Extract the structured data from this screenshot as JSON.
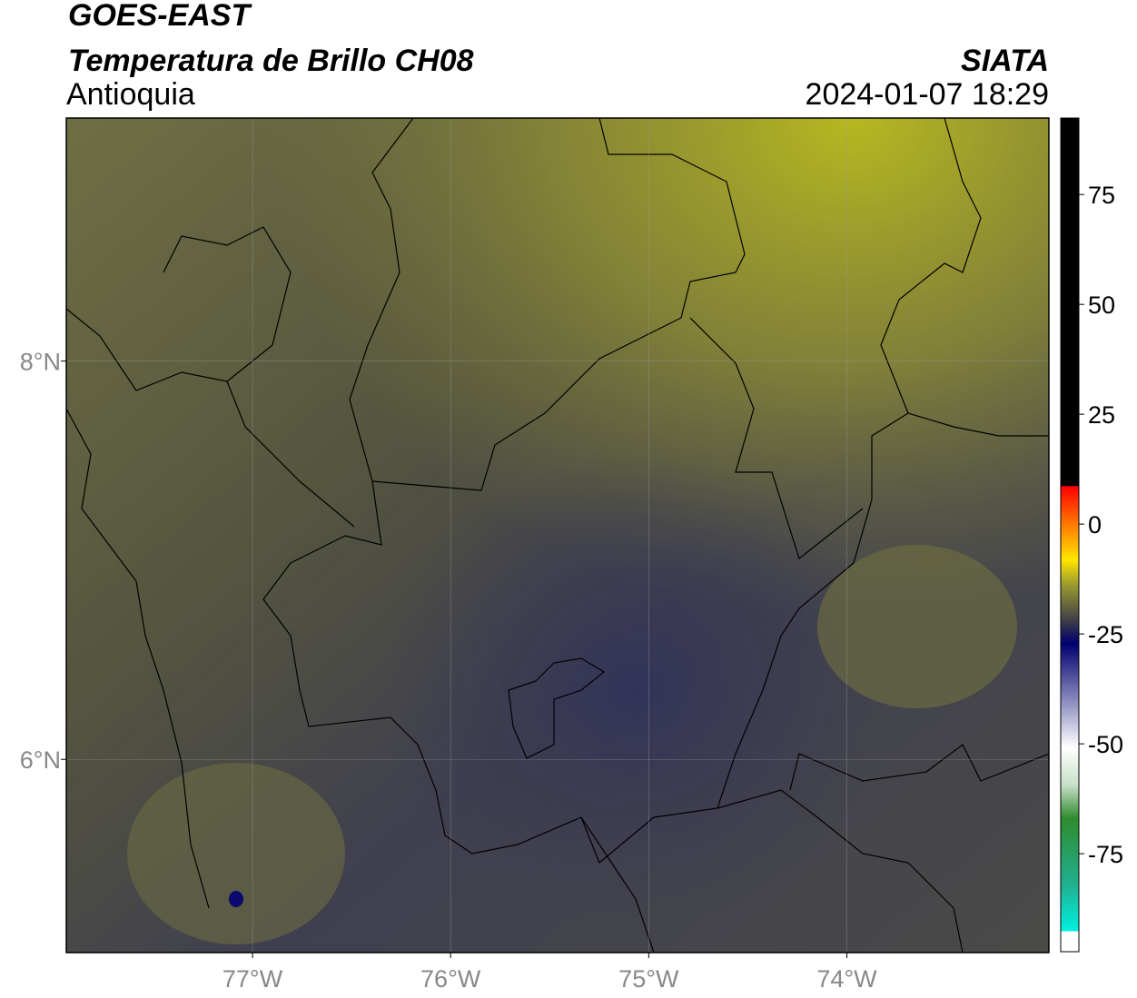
{
  "header": {
    "title": "GOES-EAST",
    "subtitle": "Temperatura de Brillo CH08",
    "region": "Antioquia",
    "source": "SIATA",
    "datetime": "2024-01-07 18:29"
  },
  "map": {
    "xlim": [
      -77.94,
      -72.98
    ],
    "ylim": [
      5.03,
      9.22
    ],
    "xticks": [
      {
        "value": -77,
        "label": "77°W"
      },
      {
        "value": -76,
        "label": "76°W"
      },
      {
        "value": -75,
        "label": "75°W"
      },
      {
        "value": -74,
        "label": "74°W"
      }
    ],
    "yticks": [
      {
        "value": 8,
        "label": "8°N"
      },
      {
        "value": 6,
        "label": "6°N"
      }
    ]
  },
  "colorbar": {
    "lim": [
      -97.3,
      92.4
    ],
    "ticks": [
      75,
      50,
      25,
      0,
      -25,
      -50,
      -75
    ]
  }
}
